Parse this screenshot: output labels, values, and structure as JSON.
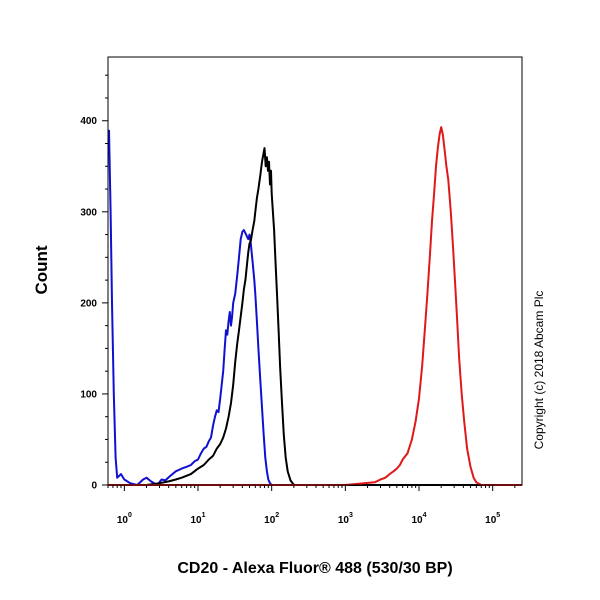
{
  "chart_data": {
    "type": "line",
    "xlabel": "CD20 - Alexa Fluor® 488 (530/30 BP)",
    "ylabel": "Count",
    "x_scale": "log",
    "xlim": [
      0.6,
      250000
    ],
    "ylim": [
      0,
      470
    ],
    "y_ticks": [
      0,
      100,
      200,
      300,
      400
    ],
    "x_ticks": [
      {
        "value": 1,
        "base": "10",
        "exp": "0"
      },
      {
        "value": 10,
        "base": "10",
        "exp": "1"
      },
      {
        "value": 100,
        "base": "10",
        "exp": "2"
      },
      {
        "value": 1000,
        "base": "10",
        "exp": "3"
      },
      {
        "value": 10000,
        "base": "10",
        "exp": "4"
      },
      {
        "value": 100000,
        "base": "10",
        "exp": "5"
      }
    ],
    "grid": false,
    "legend": "none",
    "series": [
      {
        "color": "#1010d0",
        "points": [
          [
            0.62,
            390
          ],
          [
            0.65,
            300
          ],
          [
            0.68,
            200
          ],
          [
            0.72,
            100
          ],
          [
            0.76,
            30
          ],
          [
            0.8,
            8
          ],
          [
            0.9,
            12
          ],
          [
            1.0,
            6
          ],
          [
            1.2,
            2
          ],
          [
            1.5,
            0
          ],
          [
            1.8,
            6
          ],
          [
            2.0,
            8
          ],
          [
            2.3,
            4
          ],
          [
            2.8,
            0
          ],
          [
            3.2,
            6
          ],
          [
            3.6,
            5
          ],
          [
            4.2,
            10
          ],
          [
            5,
            15
          ],
          [
            6,
            18
          ],
          [
            7,
            20
          ],
          [
            8,
            22
          ],
          [
            9,
            26
          ],
          [
            10,
            28
          ],
          [
            11,
            35
          ],
          [
            12,
            40
          ],
          [
            13,
            42
          ],
          [
            14,
            48
          ],
          [
            15,
            52
          ],
          [
            16,
            65
          ],
          [
            17,
            75
          ],
          [
            18,
            82
          ],
          [
            19,
            80
          ],
          [
            20,
            95
          ],
          [
            21,
            110
          ],
          [
            22,
            125
          ],
          [
            23,
            150
          ],
          [
            24,
            170
          ],
          [
            25,
            165
          ],
          [
            26,
            180
          ],
          [
            27,
            190
          ],
          [
            28,
            175
          ],
          [
            29,
            185
          ],
          [
            30,
            200
          ],
          [
            32,
            210
          ],
          [
            34,
            230
          ],
          [
            36,
            250
          ],
          [
            38,
            270
          ],
          [
            40,
            278
          ],
          [
            42,
            280
          ],
          [
            45,
            275
          ],
          [
            48,
            270
          ],
          [
            50,
            275
          ],
          [
            52,
            265
          ],
          [
            55,
            245
          ],
          [
            58,
            225
          ],
          [
            60,
            210
          ],
          [
            63,
            180
          ],
          [
            66,
            150
          ],
          [
            70,
            115
          ],
          [
            74,
            85
          ],
          [
            78,
            55
          ],
          [
            82,
            30
          ],
          [
            86,
            15
          ],
          [
            90,
            6
          ],
          [
            95,
            2
          ],
          [
            100,
            0
          ],
          [
            500,
            0
          ],
          [
            5000,
            0
          ],
          [
            250000,
            0
          ]
        ]
      },
      {
        "color": "#000000",
        "points": [
          [
            0.6,
            0
          ],
          [
            2,
            0
          ],
          [
            3,
            2
          ],
          [
            4,
            4
          ],
          [
            5,
            6
          ],
          [
            6,
            8
          ],
          [
            8,
            12
          ],
          [
            10,
            18
          ],
          [
            12,
            22
          ],
          [
            14,
            28
          ],
          [
            16,
            32
          ],
          [
            18,
            40
          ],
          [
            20,
            45
          ],
          [
            22,
            52
          ],
          [
            24,
            62
          ],
          [
            26,
            75
          ],
          [
            28,
            90
          ],
          [
            30,
            110
          ],
          [
            32,
            135
          ],
          [
            34,
            155
          ],
          [
            36,
            170
          ],
          [
            38,
            185
          ],
          [
            40,
            200
          ],
          [
            42,
            215
          ],
          [
            44,
            225
          ],
          [
            46,
            240
          ],
          [
            48,
            255
          ],
          [
            50,
            265
          ],
          [
            52,
            268
          ],
          [
            55,
            280
          ],
          [
            58,
            290
          ],
          [
            60,
            300
          ],
          [
            63,
            315
          ],
          [
            66,
            325
          ],
          [
            70,
            340
          ],
          [
            74,
            355
          ],
          [
            78,
            365
          ],
          [
            80,
            370
          ],
          [
            83,
            350
          ],
          [
            86,
            360
          ],
          [
            89,
            345
          ],
          [
            92,
            355
          ],
          [
            95,
            330
          ],
          [
            98,
            345
          ],
          [
            100,
            320
          ],
          [
            104,
            300
          ],
          [
            108,
            280
          ],
          [
            112,
            250
          ],
          [
            118,
            210
          ],
          [
            124,
            170
          ],
          [
            130,
            130
          ],
          [
            138,
            90
          ],
          [
            146,
            55
          ],
          [
            155,
            30
          ],
          [
            165,
            15
          ],
          [
            180,
            5
          ],
          [
            200,
            0
          ],
          [
            1000,
            0
          ],
          [
            250000,
            0
          ]
        ]
      },
      {
        "color": "#e01818",
        "points": [
          [
            0.6,
            0
          ],
          [
            1000,
            0
          ],
          [
            2500,
            3
          ],
          [
            3000,
            6
          ],
          [
            3500,
            8
          ],
          [
            4000,
            12
          ],
          [
            4500,
            15
          ],
          [
            5000,
            18
          ],
          [
            5500,
            22
          ],
          [
            6000,
            28
          ],
          [
            7000,
            35
          ],
          [
            8000,
            50
          ],
          [
            9000,
            70
          ],
          [
            10000,
            95
          ],
          [
            11000,
            130
          ],
          [
            12000,
            170
          ],
          [
            13000,
            210
          ],
          [
            14000,
            250
          ],
          [
            15000,
            290
          ],
          [
            16000,
            320
          ],
          [
            17000,
            350
          ],
          [
            18000,
            370
          ],
          [
            19000,
            385
          ],
          [
            20000,
            393
          ],
          [
            21000,
            385
          ],
          [
            22000,
            372
          ],
          [
            23500,
            350
          ],
          [
            25000,
            335
          ],
          [
            27000,
            300
          ],
          [
            29000,
            260
          ],
          [
            31000,
            220
          ],
          [
            33000,
            180
          ],
          [
            35000,
            140
          ],
          [
            38000,
            100
          ],
          [
            41000,
            70
          ],
          [
            45000,
            40
          ],
          [
            50000,
            20
          ],
          [
            55000,
            8
          ],
          [
            60000,
            3
          ],
          [
            70000,
            0
          ],
          [
            250000,
            0
          ]
        ]
      }
    ]
  },
  "copyright": "Copyright (c) 2018 Abcam Plc"
}
